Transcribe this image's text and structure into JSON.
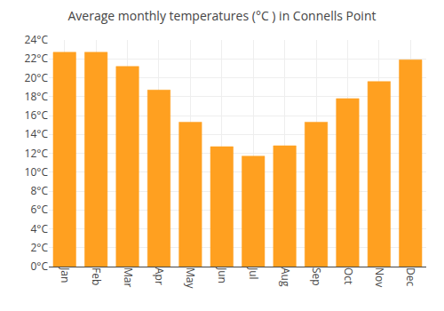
{
  "chart_data": {
    "type": "bar",
    "title": "Average monthly temperatures (°C ) in Connells Point",
    "categories": [
      "Jan",
      "Feb",
      "Mar",
      "Apr",
      "May",
      "Jun",
      "Jul",
      "Aug",
      "Sep",
      "Oct",
      "Nov",
      "Dec"
    ],
    "values": [
      22.7,
      22.7,
      21.2,
      18.7,
      15.3,
      12.7,
      11.7,
      12.8,
      15.3,
      17.8,
      19.6,
      21.9
    ],
    "color": "#FFA020",
    "ylim": [
      0,
      24
    ],
    "yticks": [
      {
        "value": 0,
        "label": "0°C"
      },
      {
        "value": 2,
        "label": "2°C"
      },
      {
        "value": 4,
        "label": "4°C"
      },
      {
        "value": 6,
        "label": "6°C"
      },
      {
        "value": 8,
        "label": "8°C"
      },
      {
        "value": 10,
        "label": "10°C"
      },
      {
        "value": 12,
        "label": "12°C"
      },
      {
        "value": 14,
        "label": "14°C"
      },
      {
        "value": 16,
        "label": "16°C"
      },
      {
        "value": 18,
        "label": "18°C"
      },
      {
        "value": 20,
        "label": "20°C"
      },
      {
        "value": 22,
        "label": "22°C"
      },
      {
        "value": 24,
        "label": "24°C"
      }
    ],
    "grid": true
  }
}
